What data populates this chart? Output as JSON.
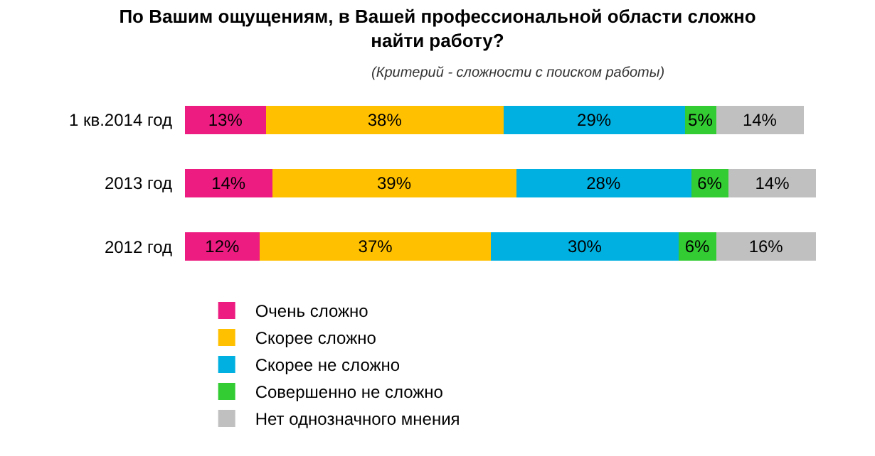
{
  "chart_data": {
    "type": "bar",
    "orientation": "horizontal",
    "stacked": true,
    "title": "По Вашим ощущениям, в Вашей профессиональной области сложно найти работу?",
    "subtitle": "(Критерий - сложности с поиском работы)",
    "categories": [
      "1 кв.2014 год",
      "2013 год",
      "2012 год"
    ],
    "legend": "bottom",
    "grid": false,
    "series": [
      {
        "name": "Очень сложно",
        "color": "#ec1c80",
        "values": [
          13,
          14,
          12
        ],
        "value_labels": [
          "13%",
          "14%",
          "12%"
        ]
      },
      {
        "name": "Скорее сложно",
        "color": "#ffc000",
        "values": [
          38,
          39,
          37
        ],
        "value_labels": [
          "38%",
          "39%",
          "37%"
        ]
      },
      {
        "name": "Скорее не сложно",
        "color": "#00b0e0",
        "values": [
          29,
          28,
          30
        ],
        "value_labels": [
          "29%",
          "28%",
          "30%"
        ]
      },
      {
        "name": "Совершенно не сложно",
        "color": "#33cc33",
        "values": [
          5,
          6,
          6
        ],
        "value_labels": [
          "5%",
          "6%",
          "6%"
        ]
      },
      {
        "name": "Нет однозначного мнения",
        "color": "#c0c0c0",
        "values": [
          14,
          14,
          16
        ],
        "value_labels": [
          "14%",
          "14%",
          "16%"
        ]
      }
    ]
  }
}
